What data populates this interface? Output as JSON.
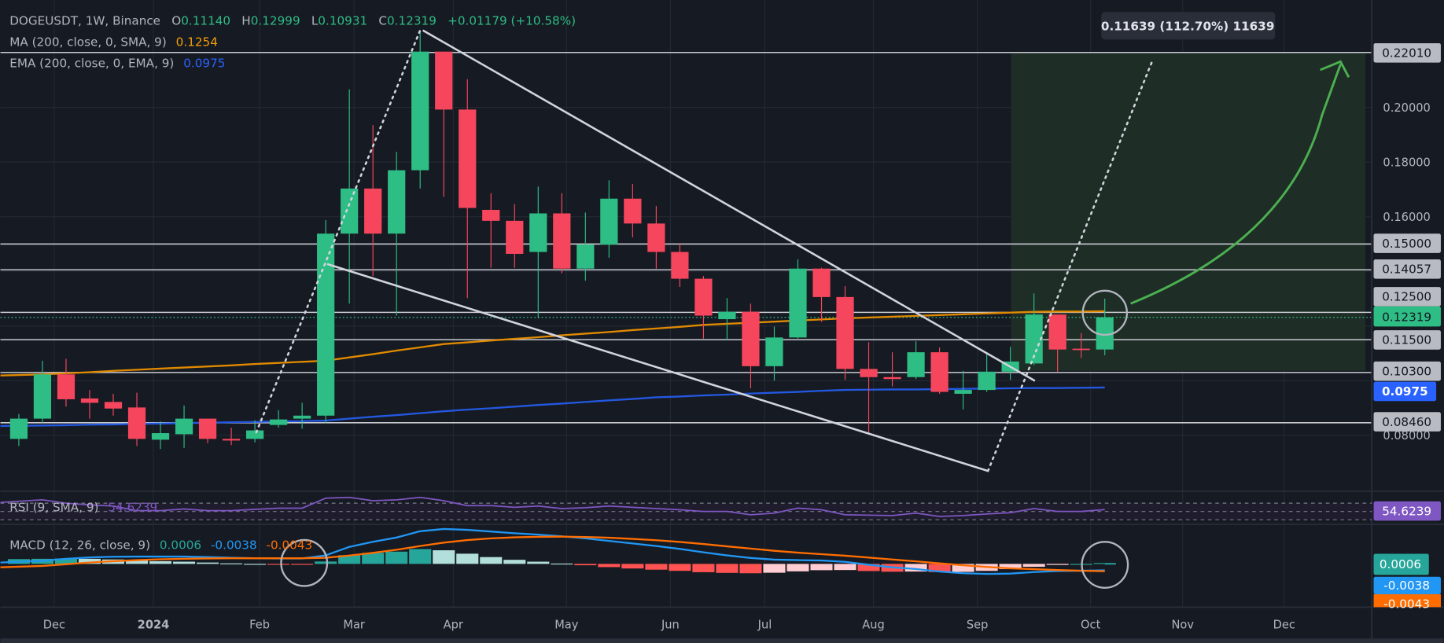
{
  "legend": {
    "symbol": "DOGEUSDT, 1W, Binance",
    "open_label": "O",
    "open": "0.11140",
    "high_label": "H",
    "high": "0.12999",
    "low_label": "L",
    "low": "0.10931",
    "close_label": "C",
    "close": "0.12319",
    "change": "+0.01179 (+10.58%)",
    "ma": {
      "label": "MA (200, close, 0, SMA, 9)",
      "value": "0.1254"
    },
    "ema": {
      "label": "EMA (200, close, 0, EMA, 9)",
      "value": "0.0975"
    }
  },
  "measure_tooltip": "0.11639 (112.70%) 11639",
  "rsi": {
    "label": "RSI (9, SMA, 9)",
    "value": "54.6239"
  },
  "macd": {
    "label": "MACD (12, 26, close, 9)",
    "histogram": "0.0006",
    "macd": "-0.0038",
    "signal": "-0.0043"
  },
  "colors": {
    "background": "#161a22",
    "grid": "#242832",
    "up": "#2ebd85",
    "down": "#f6465d",
    "ma": "#e08a00",
    "ema": "#2358e0",
    "rsi": "#7e57c2",
    "macd_line": "#2196f3",
    "signal_line": "#ff6d00",
    "hist_up_strong": "#26a69a",
    "hist_up_weak": "#b2dfdb",
    "hist_down_strong": "#ff5252",
    "hist_down_weak": "#ffcdd2",
    "target_zone": "#1e2d26",
    "projection_arrow": "#4caf50",
    "drawing": "#d1d4dc"
  },
  "chart_data": {
    "type": "candlestick",
    "symbol": "DOGEUSDT",
    "interval": "1W",
    "scale": "linear",
    "ylim": [
      0.076,
      0.235
    ],
    "price_ticks": [
      "0.20000",
      "0.18000",
      "0.16000",
      "0.08000"
    ],
    "x_ticks": [
      "Dec",
      "2024",
      "Feb",
      "Mar",
      "Apr",
      "May",
      "Jun",
      "Jul",
      "Aug",
      "Sep",
      "Oct",
      "Nov",
      "Dec"
    ],
    "horizontal_levels": [
      "0.22010",
      "0.15000",
      "0.14057",
      "0.12500",
      "0.11500",
      "0.10300",
      "0.08460"
    ],
    "last_price": "0.12319",
    "ema_last": "0.0975",
    "ohlc": [
      [
        0.0787,
        0.0878,
        0.0761,
        0.0861
      ],
      [
        0.0861,
        0.1073,
        0.0845,
        0.1023
      ],
      [
        0.1023,
        0.108,
        0.0905,
        0.0932
      ],
      [
        0.0935,
        0.0966,
        0.0861,
        0.0919
      ],
      [
        0.0922,
        0.0952,
        0.0872,
        0.0898
      ],
      [
        0.0902,
        0.0956,
        0.0761,
        0.0787
      ],
      [
        0.0784,
        0.0851,
        0.075,
        0.0808
      ],
      [
        0.0804,
        0.0909,
        0.0754,
        0.0861
      ],
      [
        0.0861,
        0.0861,
        0.0771,
        0.0787
      ],
      [
        0.0787,
        0.0828,
        0.0764,
        0.0781
      ],
      [
        0.0787,
        0.0855,
        0.0774,
        0.0818
      ],
      [
        0.0838,
        0.0892,
        0.0828,
        0.0858
      ],
      [
        0.0861,
        0.0919,
        0.0824,
        0.0872
      ],
      [
        0.0872,
        0.1588,
        0.0845,
        0.1538
      ],
      [
        0.1538,
        0.2066,
        0.1282,
        0.1703
      ],
      [
        0.1703,
        0.1935,
        0.1383,
        0.1538
      ],
      [
        0.1538,
        0.1837,
        0.1238,
        0.177
      ],
      [
        0.177,
        0.2282,
        0.1703,
        0.2204
      ],
      [
        0.2204,
        0.2204,
        0.1673,
        0.1992
      ],
      [
        0.1992,
        0.2103,
        0.1302,
        0.1632
      ],
      [
        0.1625,
        0.1686,
        0.1413,
        0.1585
      ],
      [
        0.1585,
        0.1646,
        0.1413,
        0.1464
      ],
      [
        0.1471,
        0.171,
        0.1228,
        0.1612
      ],
      [
        0.1612,
        0.1686,
        0.1393,
        0.141
      ],
      [
        0.141,
        0.1615,
        0.1366,
        0.1498
      ],
      [
        0.1498,
        0.1733,
        0.145,
        0.1666
      ],
      [
        0.1666,
        0.172,
        0.1524,
        0.1575
      ],
      [
        0.1575,
        0.1639,
        0.141,
        0.1471
      ],
      [
        0.1471,
        0.1504,
        0.1343,
        0.1373
      ],
      [
        0.1373,
        0.1383,
        0.1154,
        0.1238
      ],
      [
        0.1225,
        0.1302,
        0.1147,
        0.1252
      ],
      [
        0.1252,
        0.1282,
        0.0972,
        0.1053
      ],
      [
        0.1053,
        0.1198,
        0.1,
        0.1158
      ],
      [
        0.1158,
        0.1444,
        0.1154,
        0.141
      ],
      [
        0.141,
        0.1413,
        0.1215,
        0.1306
      ],
      [
        0.1306,
        0.1346,
        0.1003,
        0.1043
      ],
      [
        0.1043,
        0.1141,
        0.0808,
        0.1013
      ],
      [
        0.1013,
        0.1104,
        0.0979,
        0.1006
      ],
      [
        0.1013,
        0.1144,
        0.1006,
        0.1104
      ],
      [
        0.1104,
        0.1121,
        0.0952,
        0.0959
      ],
      [
        0.0952,
        0.1036,
        0.0895,
        0.0966
      ],
      [
        0.0966,
        0.1104,
        0.0959,
        0.1033
      ],
      [
        0.1033,
        0.1124,
        0.1003,
        0.107
      ],
      [
        0.1063,
        0.1319,
        0.1057,
        0.1242
      ],
      [
        0.1242,
        0.1242,
        0.1033,
        0.1114
      ],
      [
        0.1117,
        0.1174,
        0.1083,
        0.1114
      ],
      [
        0.1114,
        0.12999,
        0.10931,
        0.12319
      ]
    ],
    "ma200": [
      0.1019,
      0.1023,
      0.1027,
      0.1031,
      0.1036,
      0.104,
      0.1044,
      0.1048,
      0.1052,
      0.1056,
      0.1061,
      0.1065,
      0.1069,
      0.1073,
      0.1085,
      0.1097,
      0.111,
      0.1122,
      0.1134,
      0.114,
      0.1147,
      0.1153,
      0.1159,
      0.1166,
      0.1172,
      0.1178,
      0.1185,
      0.1191,
      0.1197,
      0.1204,
      0.1208,
      0.1212,
      0.1216,
      0.122,
      0.1224,
      0.1228,
      0.1231,
      0.1234,
      0.1237,
      0.124,
      0.1243,
      0.1246,
      0.1249,
      0.1252,
      0.1253,
      0.1253,
      0.1254
    ],
    "ema200": [
      0.0834,
      0.0836,
      0.0837,
      0.0839,
      0.084,
      0.0842,
      0.0843,
      0.0845,
      0.0846,
      0.0848,
      0.0849,
      0.0851,
      0.0852,
      0.0854,
      0.0861,
      0.0868,
      0.0874,
      0.0881,
      0.0888,
      0.0894,
      0.0899,
      0.0905,
      0.0911,
      0.0916,
      0.0922,
      0.0928,
      0.0933,
      0.0939,
      0.0942,
      0.0946,
      0.0949,
      0.0953,
      0.0956,
      0.0959,
      0.0963,
      0.0966,
      0.0967,
      0.0968,
      0.0968,
      0.0969,
      0.097,
      0.0971,
      0.0972,
      0.0973,
      0.0973,
      0.0974,
      0.0975
    ],
    "rsi": [
      72,
      78,
      70,
      66,
      63,
      52,
      52,
      56,
      52,
      52,
      55,
      58,
      58,
      82,
      84,
      76,
      78,
      84,
      76,
      64,
      64,
      60,
      63,
      57,
      59,
      63,
      60,
      57,
      54,
      50,
      50,
      42,
      46,
      58,
      54,
      42,
      41,
      40,
      46,
      38,
      40,
      44,
      47,
      57,
      50,
      50,
      54.6239
    ],
    "rsi_bands": [
      70,
      50,
      30
    ],
    "macd_line": [
      0.0008,
      0.0018,
      0.003,
      0.0038,
      0.0042,
      0.0043,
      0.0043,
      0.0043,
      0.004,
      0.0036,
      0.0033,
      0.0032,
      0.0032,
      0.005,
      0.01,
      0.013,
      0.0155,
      0.0192,
      0.0205,
      0.02,
      0.019,
      0.018,
      0.0172,
      0.0162,
      0.015,
      0.0135,
      0.012,
      0.0105,
      0.0088,
      0.0068,
      0.005,
      0.0035,
      0.0025,
      0.0022,
      0.002,
      0.0012,
      -0.0005,
      -0.002,
      -0.003,
      -0.0045,
      -0.0055,
      -0.0059,
      -0.0057,
      -0.0048,
      -0.0042,
      -0.004,
      -0.0038
    ],
    "signal_line": [
      -0.002,
      -0.0012,
      -0.0002,
      0.0008,
      0.0016,
      0.0022,
      0.0027,
      0.003,
      0.0032,
      0.0033,
      0.0033,
      0.0033,
      0.0033,
      0.0036,
      0.0049,
      0.0065,
      0.0083,
      0.0105,
      0.0125,
      0.014,
      0.015,
      0.0156,
      0.0159,
      0.016,
      0.0158,
      0.0154,
      0.0147,
      0.0139,
      0.0129,
      0.0117,
      0.0103,
      0.009,
      0.0077,
      0.0066,
      0.0057,
      0.0048,
      0.0037,
      0.0026,
      0.0015,
      0.0003,
      -0.0008,
      -0.0018,
      -0.0026,
      -0.0031,
      -0.0036,
      -0.004,
      -0.0043
    ]
  }
}
